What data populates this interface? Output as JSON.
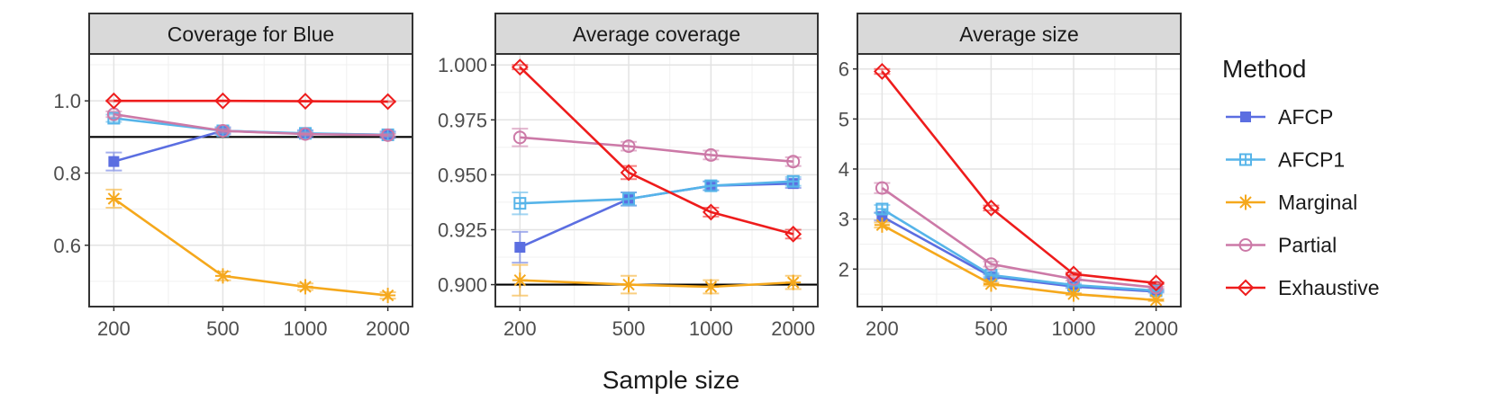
{
  "chart_data": {
    "type": "line",
    "xlabel": "Sample size",
    "x": [
      200,
      500,
      1000,
      2000
    ],
    "x_tick_labels": [
      "200",
      "500",
      "1000",
      "2000"
    ],
    "legend": {
      "title": "Method",
      "placement": "right",
      "entries": [
        {
          "name": "AFCP",
          "color": "#5b6ee1",
          "marker": "filled-square"
        },
        {
          "name": "AFCP1",
          "color": "#56b4e9",
          "marker": "open-square-cross"
        },
        {
          "name": "Marginal",
          "color": "#f5a81c",
          "marker": "asterisk"
        },
        {
          "name": "Partial",
          "color": "#cc79a7",
          "marker": "open-circle"
        },
        {
          "name": "Exhaustive",
          "color": "#ee1c1c",
          "marker": "open-diamond"
        }
      ]
    },
    "panels": [
      {
        "title": "Coverage for Blue",
        "ylim": [
          0.43,
          1.13
        ],
        "yticks": [
          0.6,
          0.8,
          1.0
        ],
        "ytick_labels": [
          "0.6",
          "0.8",
          "1.0"
        ],
        "reference_line": 0.9,
        "series": [
          {
            "name": "AFCP",
            "values": [
              0.832,
              0.917,
              0.909,
              0.906
            ],
            "errors": [
              0.025,
              0.01,
              0.01,
              0.009
            ]
          },
          {
            "name": "AFCP1",
            "values": [
              0.952,
              0.917,
              0.91,
              0.906
            ],
            "errors": [
              0.01,
              0.007,
              0.006,
              0.005
            ]
          },
          {
            "name": "Marginal",
            "values": [
              0.729,
              0.515,
              0.485,
              0.461
            ],
            "errors": [
              0.025,
              0.012,
              0.009,
              0.009
            ]
          },
          {
            "name": "Partial",
            "values": [
              0.963,
              0.917,
              0.908,
              0.905
            ],
            "errors": [
              0.008,
              0.005,
              0.004,
              0.003
            ]
          },
          {
            "name": "Exhaustive",
            "values": [
              1.0,
              1.0,
              0.999,
              0.998
            ],
            "errors": [
              0.001,
              0.001,
              0.001,
              0.001
            ]
          }
        ]
      },
      {
        "title": "Average coverage",
        "ylim": [
          0.89,
          1.005
        ],
        "yticks": [
          0.9,
          0.925,
          0.95,
          0.975,
          1.0
        ],
        "ytick_labels": [
          "0.900",
          "0.925",
          "0.950",
          "0.975",
          "1.000"
        ],
        "reference_line": 0.9,
        "series": [
          {
            "name": "AFCP",
            "values": [
              0.917,
              0.939,
              0.945,
              0.946
            ],
            "errors": [
              0.007,
              0.003,
              0.002,
              0.002
            ]
          },
          {
            "name": "AFCP1",
            "values": [
              0.937,
              0.939,
              0.945,
              0.947
            ],
            "errors": [
              0.005,
              0.003,
              0.002,
              0.002
            ]
          },
          {
            "name": "Marginal",
            "values": [
              0.902,
              0.9,
              0.899,
              0.901
            ],
            "errors": [
              0.007,
              0.004,
              0.003,
              0.003
            ]
          },
          {
            "name": "Partial",
            "values": [
              0.967,
              0.963,
              0.959,
              0.956
            ],
            "errors": [
              0.004,
              0.002,
              0.002,
              0.002
            ]
          },
          {
            "name": "Exhaustive",
            "values": [
              0.999,
              0.951,
              0.933,
              0.923
            ],
            "errors": [
              0.001,
              0.003,
              0.002,
              0.002
            ]
          }
        ]
      },
      {
        "title": "Average size",
        "ylim": [
          1.25,
          6.3
        ],
        "yticks": [
          2,
          3,
          4,
          5,
          6
        ],
        "ytick_labels": [
          "2",
          "3",
          "4",
          "5",
          "6"
        ],
        "reference_line": null,
        "series": [
          {
            "name": "AFCP",
            "values": [
              3.05,
              1.85,
              1.65,
              1.55
            ],
            "errors": [
              0.08,
              0.04,
              0.03,
              0.02
            ]
          },
          {
            "name": "AFCP1",
            "values": [
              3.2,
              1.88,
              1.68,
              1.57
            ],
            "errors": [
              0.08,
              0.04,
              0.03,
              0.02
            ]
          },
          {
            "name": "Marginal",
            "values": [
              2.88,
              1.7,
              1.5,
              1.38
            ],
            "errors": [
              0.05,
              0.03,
              0.02,
              0.02
            ]
          },
          {
            "name": "Partial",
            "values": [
              3.62,
              2.1,
              1.8,
              1.63
            ],
            "errors": [
              0.1,
              0.05,
              0.03,
              0.02
            ]
          },
          {
            "name": "Exhaustive",
            "values": [
              5.95,
              3.22,
              1.9,
              1.72
            ],
            "errors": [
              0.05,
              0.05,
              0.03,
              0.02
            ]
          }
        ]
      }
    ]
  }
}
